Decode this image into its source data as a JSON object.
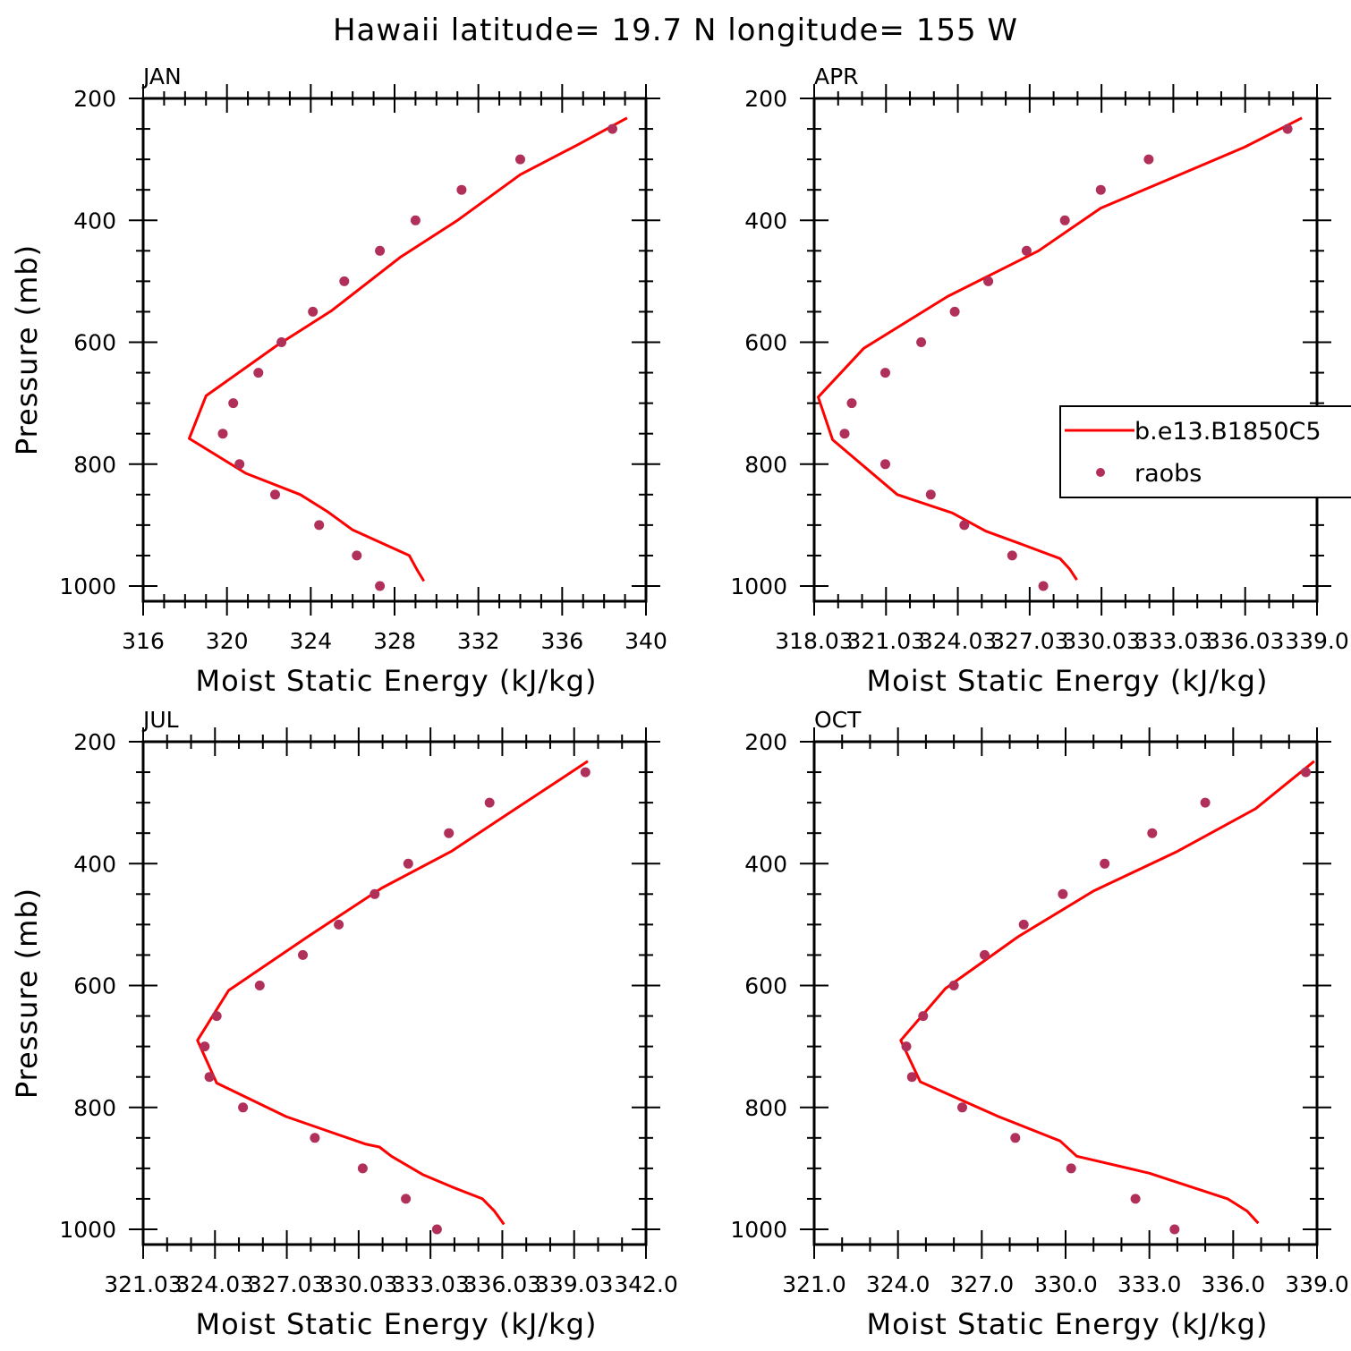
{
  "title": "Hawaii  latitude= 19.7 N longitude= 155 W",
  "colors": {
    "model": "#ff0000",
    "obs": "#b0305a",
    "axes": "#000000"
  },
  "legend": {
    "entries": [
      "b.e13.B1850C5",
      "raobs"
    ],
    "placement": "inside right of APR panel"
  },
  "chart_data": [
    {
      "type": "line",
      "panel": "JAN",
      "xlabel": "Moist Static Energy (kJ/kg)",
      "ylabel": "Pressure (mb)",
      "xlim": [
        316,
        340
      ],
      "ylim": [
        1000,
        200
      ],
      "y_reversed": true,
      "xticks": [
        316,
        320,
        324,
        328,
        332,
        336,
        340
      ],
      "xtick_labels": [
        "316",
        "320",
        "324",
        "328",
        "332",
        "336",
        "340"
      ],
      "yticks": [
        200,
        400,
        600,
        800,
        1000
      ],
      "ytick_labels": [
        "200",
        "400",
        "600",
        "800",
        "1000"
      ],
      "series": [
        {
          "name": "b.e13.B1850C5",
          "kind": "line",
          "x": [
            329.4,
            329.1,
            328.7,
            326.0,
            324.8,
            323.5,
            320.9,
            318.2,
            319.0,
            322.4,
            325.0,
            328.3,
            331.0,
            334.0,
            336.8,
            339.1
          ],
          "y": [
            992,
            975,
            950,
            908,
            878,
            850,
            815,
            758,
            688,
            605,
            548,
            460,
            400,
            325,
            275,
            232
          ]
        },
        {
          "name": "raobs",
          "kind": "scatter",
          "x": [
            327.3,
            326.2,
            324.4,
            322.3,
            320.6,
            319.8,
            320.3,
            321.5,
            322.6,
            324.1,
            325.6,
            327.3,
            329.0,
            331.2,
            334.0,
            338.4
          ],
          "y": [
            1000,
            950,
            900,
            850,
            800,
            750,
            700,
            650,
            600,
            550,
            500,
            450,
            400,
            350,
            300,
            250
          ]
        }
      ]
    },
    {
      "type": "line",
      "panel": "APR",
      "xlabel": "Moist Static Energy (kJ/kg)",
      "ylabel": "",
      "xlim": [
        318.03,
        339.03
      ],
      "ylim": [
        1000,
        200
      ],
      "y_reversed": true,
      "xticks": [
        318.03,
        321.03,
        324.03,
        327.03,
        330.03,
        333.03,
        336.03,
        339.03
      ],
      "xtick_labels": [
        "318.03",
        "321.03",
        "324.03",
        "327.03",
        "330.03",
        "333.03",
        "336.03",
        "339.0"
      ],
      "yticks": [
        200,
        400,
        600,
        800,
        1000
      ],
      "ytick_labels": [
        "200",
        "400",
        "600",
        "800",
        "1000"
      ],
      "series": [
        {
          "name": "b.e13.B1850C5",
          "kind": "line",
          "x": [
            329.0,
            328.7,
            328.3,
            326.6,
            325.2,
            323.8,
            321.5,
            318.8,
            318.2,
            320.1,
            323.6,
            327.4,
            330.0,
            333.0,
            336.0,
            338.4
          ],
          "y": [
            990,
            972,
            955,
            930,
            910,
            880,
            850,
            760,
            690,
            610,
            525,
            450,
            380,
            330,
            280,
            232
          ]
        },
        {
          "name": "raobs",
          "kind": "scatter",
          "x": [
            327.6,
            326.3,
            324.3,
            322.9,
            321.0,
            319.3,
            319.6,
            321.0,
            322.5,
            323.9,
            325.3,
            326.9,
            328.5,
            330.0,
            332.0,
            337.8
          ],
          "y": [
            1000,
            950,
            900,
            850,
            800,
            750,
            700,
            650,
            600,
            550,
            500,
            450,
            400,
            350,
            300,
            250
          ]
        }
      ]
    },
    {
      "type": "line",
      "panel": "JUL",
      "xlabel": "Moist Static Energy (kJ/kg)",
      "ylabel": "Pressure (mb)",
      "xlim": [
        321.03,
        342.03
      ],
      "ylim": [
        1000,
        200
      ],
      "y_reversed": true,
      "xticks": [
        321.03,
        324.03,
        327.03,
        330.03,
        333.03,
        336.03,
        339.03,
        342.03
      ],
      "xtick_labels": [
        "321.03",
        "324.03",
        "327.03",
        "330.03",
        "333.03",
        "336.03",
        "339.03",
        "342.0"
      ],
      "yticks": [
        200,
        400,
        600,
        800,
        1000
      ],
      "ytick_labels": [
        "200",
        "400",
        "600",
        "800",
        "1000"
      ],
      "series": [
        {
          "name": "b.e13.B1850C5",
          "kind": "line",
          "x": [
            336.1,
            335.7,
            335.2,
            333.9,
            332.7,
            331.4,
            330.9,
            330.3,
            327.0,
            324.1,
            323.3,
            324.6,
            327.9,
            331.0,
            333.9,
            336.2,
            339.6
          ],
          "y": [
            992,
            970,
            950,
            930,
            910,
            880,
            865,
            860,
            815,
            760,
            690,
            608,
            520,
            440,
            380,
            320,
            232
          ]
        },
        {
          "name": "raobs",
          "kind": "scatter",
          "x": [
            333.3,
            332.0,
            330.2,
            328.2,
            325.2,
            323.8,
            323.6,
            324.1,
            325.9,
            327.7,
            329.2,
            330.7,
            332.1,
            333.8,
            335.5,
            339.5
          ],
          "y": [
            1000,
            950,
            900,
            850,
            800,
            750,
            700,
            650,
            600,
            550,
            500,
            450,
            400,
            350,
            300,
            250
          ]
        }
      ]
    },
    {
      "type": "line",
      "panel": "OCT",
      "xlabel": "Moist Static Energy (kJ/kg)",
      "ylabel": "",
      "xlim": [
        321.0,
        339.0
      ],
      "ylim": [
        1000,
        200
      ],
      "y_reversed": true,
      "xticks": [
        321.0,
        324.0,
        327.0,
        330.0,
        333.0,
        336.0,
        339.0
      ],
      "xtick_labels": [
        "321.0",
        "324.0",
        "327.0",
        "330.0",
        "333.0",
        "336.0",
        "339.0"
      ],
      "yticks": [
        200,
        400,
        600,
        800,
        1000
      ],
      "ytick_labels": [
        "200",
        "400",
        "600",
        "800",
        "1000"
      ],
      "series": [
        {
          "name": "b.e13.B1850C5",
          "kind": "line",
          "x": [
            336.9,
            336.5,
            335.8,
            333.0,
            330.4,
            329.8,
            327.6,
            324.8,
            324.1,
            325.7,
            328.3,
            331.0,
            334.0,
            336.8,
            338.9
          ],
          "y": [
            990,
            970,
            950,
            908,
            880,
            855,
            815,
            758,
            690,
            605,
            520,
            445,
            380,
            310,
            232
          ]
        },
        {
          "name": "raobs",
          "kind": "scatter",
          "x": [
            333.9,
            332.5,
            330.2,
            328.2,
            326.3,
            324.5,
            324.3,
            324.9,
            326.0,
            327.1,
            328.5,
            329.9,
            331.4,
            333.1,
            335.0,
            338.6
          ],
          "y": [
            1000,
            950,
            900,
            850,
            800,
            750,
            700,
            650,
            600,
            550,
            500,
            450,
            400,
            350,
            300,
            250
          ]
        }
      ]
    }
  ]
}
